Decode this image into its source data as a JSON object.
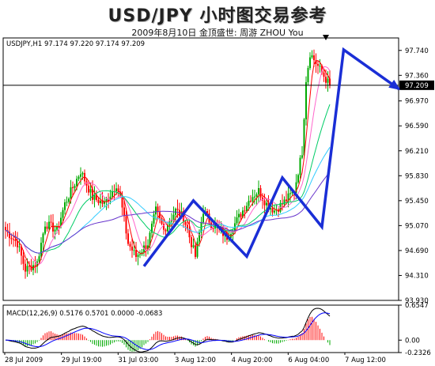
{
  "header": {
    "title": "USD/JPY 小时图交易参考",
    "subtitle": "2009年8月10日   金顶盛世: 周游 ZHOU You"
  },
  "chart_data": [
    {
      "type": "candlestick",
      "info_label": "USDJPY,H1  97.174 97.220 97.174 97.209",
      "symbol": "USDJPY,H1",
      "ohlc_last": [
        97.174,
        97.22,
        97.174,
        97.209
      ],
      "y_ticks": [
        "97.740",
        "97.360",
        "96.970",
        "96.590",
        "96.210",
        "95.830",
        "95.450",
        "95.070",
        "94.690",
        "94.310",
        "93.930"
      ],
      "ylim": [
        93.93,
        97.93
      ],
      "last_price": 97.209,
      "last_price_label": "97.209",
      "x_ticks": [
        "28 Jul 2009",
        "29 Jul 19:00",
        "31 Jul 03:00",
        "3 Aug 12:00",
        "4 Aug 20:00",
        "6 Aug 04:00",
        "7 Aug 12:00"
      ],
      "n_bars": 174,
      "close_path": [
        [
          0,
          95.0
        ],
        [
          6,
          94.8
        ],
        [
          10,
          94.4
        ],
        [
          16,
          94.5
        ],
        [
          20,
          95.1
        ],
        [
          26,
          95.0
        ],
        [
          30,
          95.4
        ],
        [
          38,
          95.9
        ],
        [
          44,
          95.5
        ],
        [
          50,
          95.4
        ],
        [
          56,
          95.7
        ],
        [
          58,
          95.5
        ],
        [
          62,
          94.8
        ],
        [
          66,
          94.6
        ],
        [
          72,
          94.8
        ],
        [
          76,
          95.3
        ],
        [
          80,
          95.0
        ],
        [
          86,
          95.3
        ],
        [
          90,
          95.2
        ],
        [
          96,
          94.6
        ],
        [
          100,
          95.3
        ],
        [
          104,
          95.1
        ],
        [
          108,
          95.0
        ],
        [
          112,
          94.9
        ],
        [
          116,
          95.1
        ],
        [
          120,
          95.3
        ],
        [
          124,
          95.5
        ],
        [
          128,
          95.6
        ],
        [
          132,
          95.4
        ],
        [
          136,
          95.3
        ],
        [
          140,
          95.4
        ],
        [
          146,
          95.6
        ],
        [
          150,
          96.2
        ],
        [
          152,
          97.3
        ],
        [
          154,
          97.7
        ],
        [
          158,
          97.5
        ],
        [
          162,
          97.3
        ],
        [
          164,
          97.209
        ]
      ],
      "moving_averages": [
        {
          "color": "#ff0000",
          "period": 5
        },
        {
          "color": "#ff66cc",
          "period": 10
        },
        {
          "color": "#00cc66",
          "period": 20
        },
        {
          "color": "#33ccff",
          "period": 35
        },
        {
          "color": "#6633cc",
          "period": 55
        }
      ],
      "annotation_waves": [
        [
          [
            70,
            94.45
          ],
          [
            95,
            95.45
          ],
          [
            122,
            94.6
          ],
          [
            140,
            95.8
          ],
          [
            160,
            95.05
          ],
          [
            171,
            97.75
          ],
          [
            199,
            97.15
          ]
        ]
      ],
      "colors": {
        "up": "#00aa00",
        "down": "#ff0000",
        "wave": "#1a2ed6"
      }
    },
    {
      "type": "bar",
      "info_label": "MACD(12,26,9)  0.5176  0.5701  0.0000  -0.0683",
      "indicator": "MACD(12,26,9)",
      "values_shown": [
        0.5176,
        0.5701,
        0.0,
        -0.0683
      ],
      "y_ticks": [
        "0.6547",
        "0.00",
        "-0.2326"
      ],
      "ylim": [
        -0.2326,
        0.6547
      ],
      "colors": {
        "hist_up": "#00aa00",
        "hist_down": "#ff0000",
        "macd": "#000000",
        "signal": "#0000ff"
      }
    }
  ]
}
